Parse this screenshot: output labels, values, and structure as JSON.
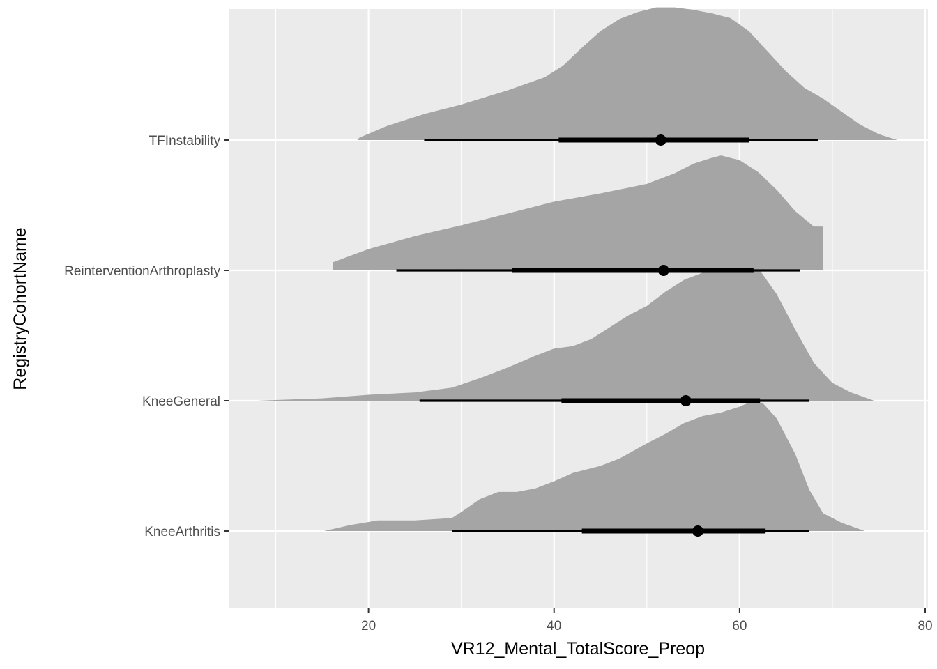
{
  "chart_data": {
    "type": "halfeye",
    "title": "",
    "xlabel": "VR12_Mental_TotalScore_Preop",
    "ylabel": "RegistryCohortName",
    "xlim": [
      5,
      80.3
    ],
    "x_ticks": [
      20,
      40,
      60,
      80
    ],
    "x_tick_labels": [
      "20",
      "40",
      "60",
      "80"
    ],
    "grid": true,
    "legend": "none",
    "colors": {
      "panel": "#ebebeb",
      "grid": "#ffffff",
      "density": "#a5a5a5",
      "interval": "#000000"
    },
    "categories": [
      "KneeArthritis",
      "KneeGeneral",
      "ReinterventionArthroplasty",
      "TFInstability"
    ],
    "series": [
      {
        "name": "KneeArthritis",
        "median": 55.5,
        "interval_66": [
          43.0,
          62.8
        ],
        "interval_95": [
          29.0,
          67.5
        ],
        "density": [
          [
            15.2,
            0.0
          ],
          [
            18.0,
            0.05
          ],
          [
            21.0,
            0.09
          ],
          [
            25.0,
            0.09
          ],
          [
            29.0,
            0.11
          ],
          [
            30.0,
            0.16
          ],
          [
            32.0,
            0.27
          ],
          [
            34.0,
            0.33
          ],
          [
            36.0,
            0.33
          ],
          [
            38.0,
            0.36
          ],
          [
            40.0,
            0.42
          ],
          [
            42.0,
            0.49
          ],
          [
            45.0,
            0.55
          ],
          [
            47.0,
            0.61
          ],
          [
            50.0,
            0.74
          ],
          [
            52.0,
            0.82
          ],
          [
            54.0,
            0.91
          ],
          [
            56.0,
            0.97
          ],
          [
            58.0,
            1.0
          ],
          [
            60.0,
            1.05
          ],
          [
            61.5,
            1.1
          ],
          [
            62.5,
            1.08
          ],
          [
            64.0,
            0.95
          ],
          [
            66.0,
            0.65
          ],
          [
            67.5,
            0.35
          ],
          [
            69.0,
            0.15
          ],
          [
            71.0,
            0.07
          ],
          [
            73.5,
            0.0
          ]
        ]
      },
      {
        "name": "KneeGeneral",
        "median": 54.2,
        "interval_66": [
          40.8,
          62.2
        ],
        "interval_95": [
          25.5,
          67.5
        ],
        "density": [
          [
            8.0,
            0.0
          ],
          [
            15.0,
            0.02
          ],
          [
            20.0,
            0.05
          ],
          [
            25.0,
            0.07
          ],
          [
            29.0,
            0.11
          ],
          [
            32.0,
            0.19
          ],
          [
            35.0,
            0.28
          ],
          [
            38.0,
            0.38
          ],
          [
            40.0,
            0.44
          ],
          [
            42.0,
            0.46
          ],
          [
            44.0,
            0.52
          ],
          [
            46.0,
            0.62
          ],
          [
            48.0,
            0.72
          ],
          [
            50.0,
            0.8
          ],
          [
            52.0,
            0.92
          ],
          [
            54.0,
            1.02
          ],
          [
            56.0,
            1.08
          ],
          [
            58.0,
            1.12
          ],
          [
            60.0,
            1.2
          ],
          [
            61.0,
            1.19
          ],
          [
            62.0,
            1.12
          ],
          [
            64.0,
            0.9
          ],
          [
            66.0,
            0.6
          ],
          [
            68.0,
            0.32
          ],
          [
            70.0,
            0.15
          ],
          [
            72.0,
            0.07
          ],
          [
            74.5,
            0.0
          ]
        ]
      },
      {
        "name": "ReinterventionArthroplasty",
        "median": 51.8,
        "interval_66": [
          35.5,
          61.5
        ],
        "interval_95": [
          23.0,
          66.5
        ],
        "density": [
          [
            16.2,
            0.0
          ],
          [
            16.2,
            0.07
          ],
          [
            20.0,
            0.18
          ],
          [
            25.0,
            0.29
          ],
          [
            30.0,
            0.38
          ],
          [
            35.0,
            0.48
          ],
          [
            40.0,
            0.58
          ],
          [
            45.0,
            0.65
          ],
          [
            50.0,
            0.73
          ],
          [
            53.0,
            0.82
          ],
          [
            55.0,
            0.9
          ],
          [
            57.0,
            0.95
          ],
          [
            58.0,
            0.97
          ],
          [
            60.0,
            0.93
          ],
          [
            62.0,
            0.83
          ],
          [
            64.0,
            0.68
          ],
          [
            66.0,
            0.5
          ],
          [
            68.0,
            0.37
          ],
          [
            69.0,
            0.37
          ],
          [
            69.0,
            0.0
          ]
        ]
      },
      {
        "name": "TFInstability",
        "median": 51.5,
        "interval_66": [
          40.5,
          61.0
        ],
        "interval_95": [
          26.0,
          68.5
        ],
        "density": [
          [
            18.8,
            0.0
          ],
          [
            19.0,
            0.02
          ],
          [
            22.0,
            0.12
          ],
          [
            26.0,
            0.22
          ],
          [
            30.0,
            0.3
          ],
          [
            35.0,
            0.42
          ],
          [
            39.0,
            0.53
          ],
          [
            41.0,
            0.63
          ],
          [
            43.0,
            0.78
          ],
          [
            45.0,
            0.92
          ],
          [
            47.0,
            1.02
          ],
          [
            49.0,
            1.08
          ],
          [
            51.0,
            1.12
          ],
          [
            53.0,
            1.12
          ],
          [
            55.0,
            1.1
          ],
          [
            57.0,
            1.07
          ],
          [
            59.0,
            1.03
          ],
          [
            61.0,
            0.92
          ],
          [
            63.0,
            0.75
          ],
          [
            65.0,
            0.58
          ],
          [
            67.0,
            0.44
          ],
          [
            69.0,
            0.35
          ],
          [
            71.0,
            0.24
          ],
          [
            73.0,
            0.13
          ],
          [
            75.0,
            0.05
          ],
          [
            77.0,
            0.0
          ]
        ]
      }
    ]
  }
}
